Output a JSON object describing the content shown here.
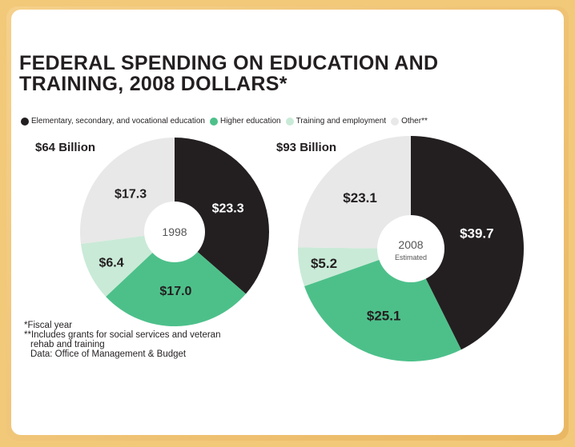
{
  "chart_data": {
    "type": "pie",
    "title": "FEDERAL SPENDING ON EDUCATION AND TRAINING, 2008 DOLLARS*",
    "legend": {
      "placement": "top",
      "entries": [
        {
          "name": "Elementary, secondary, and vocational education",
          "color": "#231f20"
        },
        {
          "name": "Higher education",
          "color": "#4dc08a"
        },
        {
          "name": "Training and employment",
          "color": "#c9ead7"
        },
        {
          "name": "Other**",
          "color": "#e8e8e8"
        }
      ]
    },
    "charts": [
      {
        "total_label": "$64 Billion",
        "center_label": "1998",
        "center_sublabel": "",
        "slices": [
          {
            "category": "Elementary, secondary, and vocational education",
            "value": 23.3,
            "label": "$23.3",
            "color": "#231f20"
          },
          {
            "category": "Higher education",
            "value": 17.0,
            "label": "$17.0",
            "color": "#4dc08a"
          },
          {
            "category": "Training and employment",
            "value": 6.4,
            "label": "$6.4",
            "color": "#c9ead7"
          },
          {
            "category": "Other**",
            "value": 17.3,
            "label": "$17.3",
            "color": "#e8e8e8"
          }
        ]
      },
      {
        "total_label": "$93 Billion",
        "center_label": "2008",
        "center_sublabel": "Estimated",
        "slices": [
          {
            "category": "Elementary, secondary, and vocational education",
            "value": 39.7,
            "label": "$39.7",
            "color": "#231f20"
          },
          {
            "category": "Higher education",
            "value": 25.1,
            "label": "$25.1",
            "color": "#4dc08a"
          },
          {
            "category": "Training and employment",
            "value": 5.2,
            "label": "$5.2",
            "color": "#c9ead7"
          },
          {
            "category": "Other**",
            "value": 23.1,
            "label": "$23.1",
            "color": "#e8e8e8"
          }
        ]
      }
    ]
  },
  "notes": {
    "fiscal": "*Fiscal year",
    "other": "**Includes grants for social services and veteran",
    "other_cont": "rehab and training",
    "source": "Data: Office of Management & Budget"
  }
}
